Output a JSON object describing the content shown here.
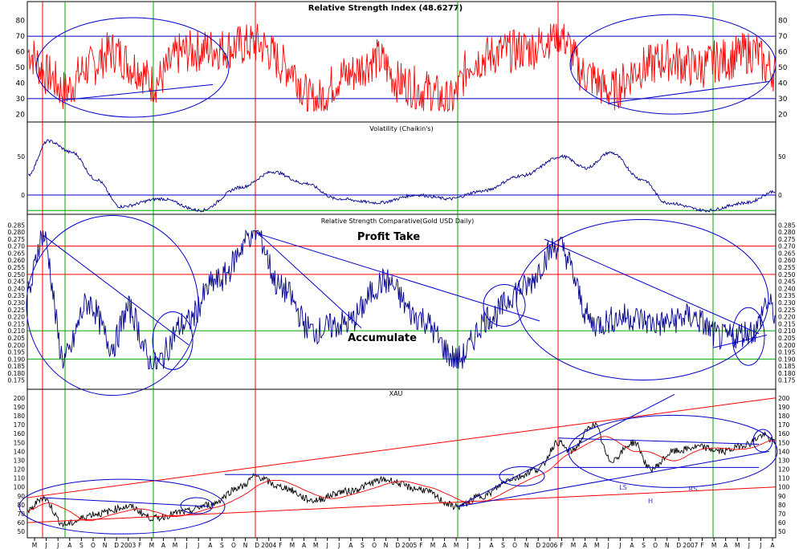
{
  "chart_data": [
    {
      "panel": "rsi",
      "type": "line",
      "title": "Relative Strength Index (48.6277)",
      "yticks": [
        20,
        30,
        40,
        50,
        60,
        70,
        80
      ],
      "ylim": [
        15,
        85
      ],
      "reference_lines": [
        30,
        70
      ],
      "series": [
        {
          "color": "#ff0000",
          "start": 60,
          "end": 48.6,
          "min": 22,
          "max": 78
        }
      ],
      "annotations": [
        "ellipse-left",
        "ellipse-right",
        "support-trendline-left",
        "support-trendline-right"
      ]
    },
    {
      "panel": "volatility",
      "type": "line",
      "title": "Volatility (Chaikin's)",
      "yticks": [
        0,
        50
      ],
      "ylim": [
        -25,
        80
      ],
      "reference_lines": [
        0,
        -20
      ],
      "series": [
        {
          "color": "#00008b"
        }
      ]
    },
    {
      "panel": "rsc",
      "type": "line",
      "title": "Relative Strength Comparative(Gold USD Daily)",
      "yticks": [
        0.175,
        0.18,
        0.185,
        0.19,
        0.195,
        0.2,
        0.205,
        0.21,
        0.215,
        0.22,
        0.225,
        0.23,
        0.235,
        0.24,
        0.245,
        0.25,
        0.255,
        0.26,
        0.265,
        0.27,
        0.275,
        0.28,
        0.285
      ],
      "ylim": [
        0.172,
        0.288
      ],
      "levels": [
        {
          "value": 0.27,
          "color": "#ff0000"
        },
        {
          "value": 0.25,
          "color": "#ff0000"
        },
        {
          "value": 0.21,
          "color": "#00aa00"
        },
        {
          "value": 0.19,
          "color": "#00aa00"
        }
      ],
      "annotations": [
        "Profit Take",
        "Accumulate"
      ],
      "series": [
        {
          "color": "#00008b",
          "start": 0.235,
          "end": 0.222,
          "min": 0.183,
          "max": 0.281
        }
      ]
    },
    {
      "panel": "xau",
      "type": "line",
      "title": "XAU",
      "yticks": [
        50,
        60,
        70,
        80,
        90,
        100,
        110,
        120,
        130,
        140,
        150,
        160,
        170,
        180,
        190,
        200
      ],
      "ylim": [
        43,
        207
      ],
      "series": [
        {
          "color": "#000000",
          "start": 72,
          "end": 150,
          "min": 55,
          "max": 172
        },
        {
          "color": "#ff0000"
        }
      ],
      "annotations": [
        "LS",
        "H",
        "RS"
      ],
      "x_labels": [
        "M",
        "J",
        "J",
        "A",
        "S",
        "O",
        "N",
        "D",
        "2003",
        "F",
        "M",
        "A",
        "M",
        "J",
        "J",
        "A",
        "S",
        "O",
        "N",
        "D",
        "2004",
        "F",
        "M",
        "A",
        "M",
        "J",
        "J",
        "A",
        "S",
        "O",
        "N",
        "D",
        "2005",
        "F",
        "M",
        "A",
        "M",
        "J",
        "J",
        "A",
        "S",
        "O",
        "N",
        "D",
        "2006",
        "F",
        "M",
        "A",
        "M",
        "J",
        "J",
        "A",
        "S",
        "O",
        "N",
        "D",
        "2007",
        "F",
        "M",
        "A",
        "M",
        "J",
        "J",
        "A"
      ]
    }
  ]
}
